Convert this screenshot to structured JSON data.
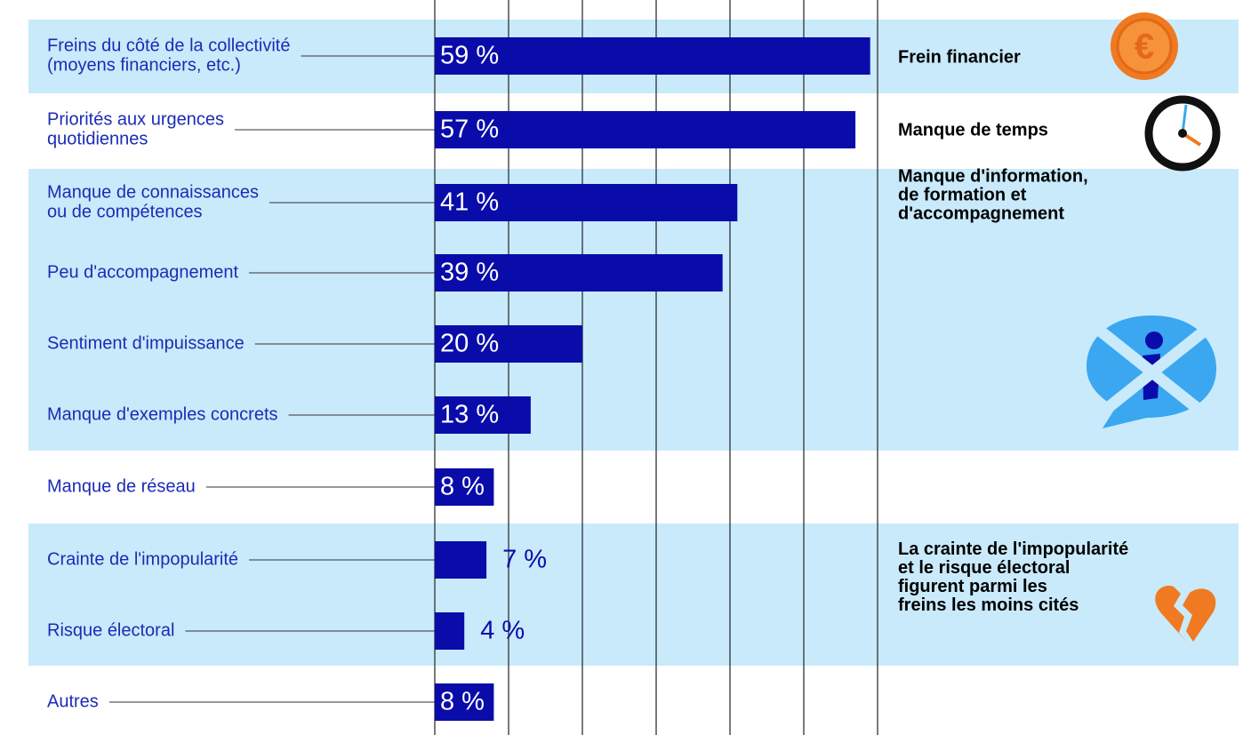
{
  "chart_data": {
    "type": "bar",
    "categories": [
      [
        "Freins du côté de la collectivité",
        "(moyens financiers, etc.)"
      ],
      [
        "Priorités aux urgences",
        "quotidiennes"
      ],
      [
        "Manque de connaissances",
        "ou de compétences"
      ],
      [
        "Peu d'accompagnement"
      ],
      [
        "Sentiment d'impuissance"
      ],
      [
        "Manque d'exemples concrets"
      ],
      [
        "Manque de réseau"
      ],
      [
        "Crainte de l'impopularité"
      ],
      [
        "Risque électoral"
      ],
      [
        "Autres"
      ]
    ],
    "values": [
      59,
      57,
      41,
      39,
      20,
      13,
      8,
      7,
      4,
      8
    ],
    "value_labels": [
      "59 %",
      "57 %",
      "41 %",
      "39 %",
      "20 %",
      "13 %",
      "8 %",
      "7 %",
      "4 %",
      "8 %"
    ],
    "color": "#0a0caa",
    "xlim": [
      0,
      60
    ],
    "xticks": [
      0,
      10,
      20,
      30,
      40,
      50,
      60
    ],
    "grid": true,
    "annotations": [
      [
        "Frein financier"
      ],
      [
        "Manque de temps"
      ],
      [
        "Manque d'information,",
        "de formation et",
        "d'accompagnement"
      ],
      [
        "La crainte de l'impopularité",
        "et le risque électoral",
        "figurent parmi les",
        "freins les moins cités"
      ]
    ]
  }
}
